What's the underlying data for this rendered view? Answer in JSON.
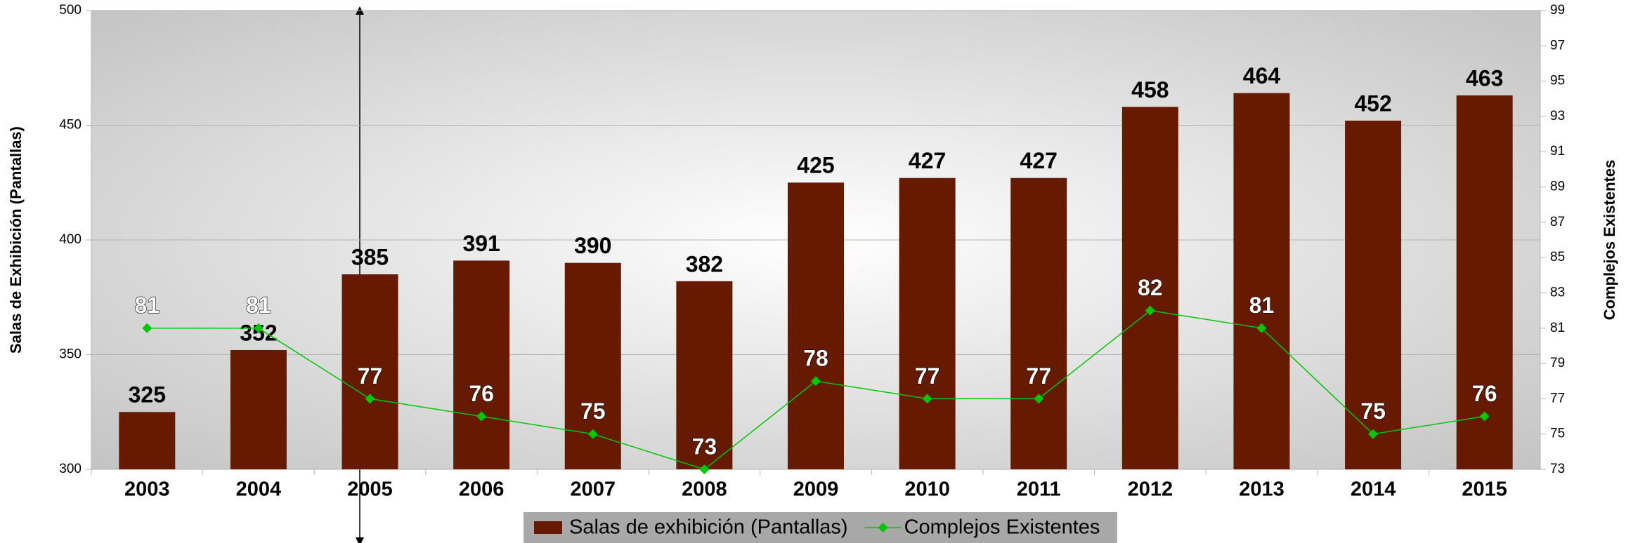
{
  "chart_data": {
    "type": "bar",
    "categories": [
      "2003",
      "2004",
      "2005",
      "2006",
      "2007",
      "2008",
      "2009",
      "2010",
      "2011",
      "2012",
      "2013",
      "2014",
      "2015"
    ],
    "series": [
      {
        "name": "Salas de exhibición (Pantallas)",
        "type": "bar",
        "color": "#661a00",
        "values": [
          325,
          352,
          385,
          391,
          390,
          382,
          425,
          427,
          427,
          458,
          464,
          452,
          463
        ]
      },
      {
        "name": "Complejos Existentes",
        "type": "line",
        "axis": "y2",
        "color": "#00c800",
        "values": [
          81,
          81,
          77,
          76,
          75,
          73,
          78,
          77,
          77,
          82,
          81,
          75,
          76
        ]
      }
    ],
    "y_label": "Salas de Exhibición (Pantallas)",
    "y2_label": "Complejos Existentes",
    "ylim": [
      300,
      500
    ],
    "yticks": [
      300,
      350,
      400,
      450,
      500
    ],
    "y2lim": [
      73,
      99
    ],
    "y2ticks": [
      73,
      75,
      77,
      79,
      81,
      83,
      85,
      87,
      89,
      91,
      93,
      95,
      97,
      99
    ],
    "grid": true,
    "legend": "bottom"
  }
}
